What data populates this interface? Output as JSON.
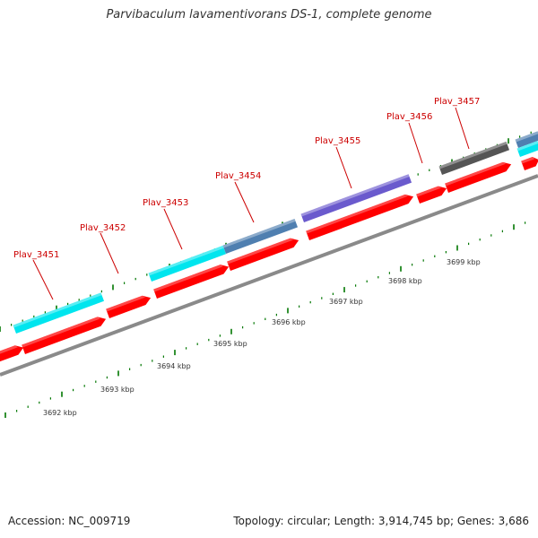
{
  "title": "Parvibaculum lavamentivorans DS-1, complete genome",
  "footer": {
    "accession": "Accession: NC_009719",
    "summary": "Topology: circular; Length: 3,914,745 bp; Genes: 3,686"
  },
  "colors": {
    "backbone": "#888888",
    "cds": "#ff0000",
    "cyan_feature": "#00e5ee",
    "steelblue_feature": "#4f7fb0",
    "slateblue_feature": "#6a5acd",
    "gray_feature": "#555555",
    "tick": "#007700",
    "label": "#cc0000"
  },
  "gene_labels": [
    {
      "id": "gene-label-3451",
      "text": "Plav_3451"
    },
    {
      "id": "gene-label-3452",
      "text": "Plav_3452"
    },
    {
      "id": "gene-label-3453",
      "text": "Plav_3453"
    },
    {
      "id": "gene-label-3454",
      "text": "Plav_3454"
    },
    {
      "id": "gene-label-3455",
      "text": "Plav_3455"
    },
    {
      "id": "gene-label-3456",
      "text": "Plav_3456"
    },
    {
      "id": "gene-label-3457",
      "text": "Plav_3457"
    }
  ],
  "scale_labels": [
    "3692 kbp",
    "3693 kbp",
    "3694 kbp",
    "3695 kbp",
    "3696 kbp",
    "3697 kbp",
    "3698 kbp",
    "3699 kbp"
  ]
}
